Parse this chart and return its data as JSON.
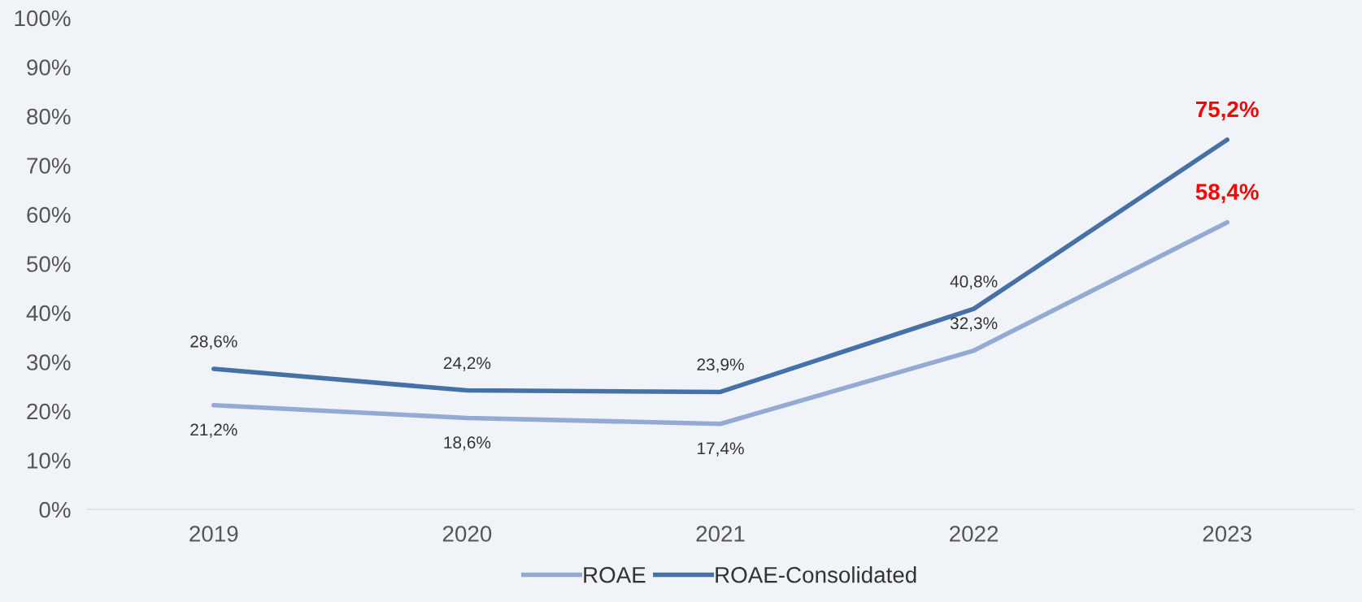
{
  "chart_data": {
    "type": "line",
    "categories": [
      "2019",
      "2020",
      "2021",
      "2022",
      "2023"
    ],
    "series": [
      {
        "name": "ROAE",
        "color": "#94aad2",
        "values": [
          21.2,
          18.6,
          17.4,
          32.3,
          58.4
        ],
        "value_labels": [
          "21,2%",
          "18,6%",
          "17,4%",
          "32,3%",
          "58,4%"
        ]
      },
      {
        "name": "ROAE-Consolidated",
        "color": "#4571a7",
        "values": [
          28.6,
          24.2,
          23.9,
          40.8,
          75.2
        ],
        "value_labels": [
          "28,6%",
          "24,2%",
          "23,9%",
          "40,8%",
          "75,2%"
        ]
      }
    ],
    "ylim": [
      0,
      100
    ],
    "yticks": [
      {
        "value": 0,
        "label": "0%"
      },
      {
        "value": 10,
        "label": "10%"
      },
      {
        "value": 20,
        "label": "20%"
      },
      {
        "value": 30,
        "label": "30%"
      },
      {
        "value": 40,
        "label": "40%"
      },
      {
        "value": 50,
        "label": "50%"
      },
      {
        "value": 60,
        "label": "60%"
      },
      {
        "value": 70,
        "label": "70%"
      },
      {
        "value": 80,
        "label": "80%"
      },
      {
        "value": 90,
        "label": "90%"
      },
      {
        "value": 100,
        "label": "100%"
      }
    ],
    "grid": false,
    "legend": "bottom",
    "marker": "none",
    "line_style": "solid"
  }
}
